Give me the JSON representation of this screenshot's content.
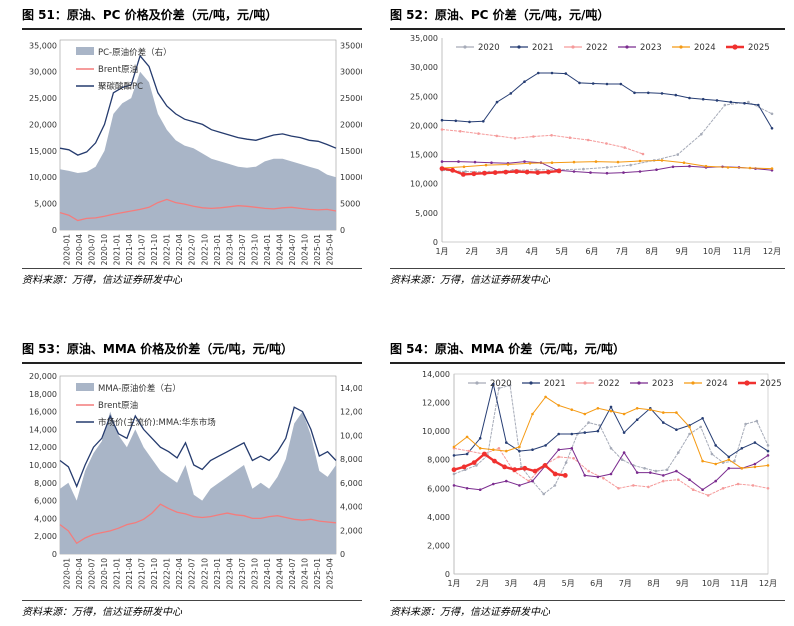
{
  "source_note": "资料来源：万得，信达证券研发中心",
  "colors": {
    "bg_area": "#a9b5c7",
    "brent": "#f47c7c",
    "dark_line": "#253b6e",
    "y2020": "#a6abb8",
    "y2021": "#273e74",
    "y2022": "#f59a9a",
    "y2023": "#7b2c8f",
    "y2024": "#f59a13",
    "y2025": "#f0312f"
  },
  "panels": [
    {
      "id": "p51",
      "title": "图 51：原油、PC 价格及价差（元/吨，元/吨）"
    },
    {
      "id": "p52",
      "title": "图 52：原油、PC 价差（元/吨，元/吨）"
    },
    {
      "id": "p53",
      "title": "图 53：原油、MMA 价格及价差（元/吨，元/吨）"
    },
    {
      "id": "p54",
      "title": "图 54：原油、MMA 价差（元/吨，元/吨）"
    }
  ],
  "chart_data": [
    {
      "type": "line",
      "panel": "p51",
      "x_labels": [
        "2020-01",
        "2020-04",
        "2020-07",
        "2020-10",
        "2021-01",
        "2021-04",
        "2021-07",
        "2021-10",
        "2022-01",
        "2022-04",
        "2022-07",
        "2022-10",
        "2023-01",
        "2023-04",
        "2023-07",
        "2023-10",
        "2024-01",
        "2024-04",
        "2024-07",
        "2024-10",
        "2025-01",
        "2025-04"
      ],
      "y_left": {
        "ticks": [
          0,
          5000,
          10000,
          15000,
          20000,
          25000,
          30000,
          35000
        ],
        "labels": [
          "0",
          "5,000",
          "10,000",
          "15,000",
          "20,000",
          "25,000",
          "30,000",
          "35,000"
        ],
        "max": 36000
      },
      "y_right": {
        "ticks": [
          0,
          5000,
          10000,
          15000,
          20000,
          25000,
          30000,
          35000
        ],
        "labels": [
          "0",
          "5000",
          "10000",
          "15000",
          "20000",
          "25000",
          "30000",
          "35000"
        ],
        "max": 36000
      },
      "legend": [
        "PC-原油价差（右）",
        "Brent原油",
        "聚碳酸酯PC"
      ],
      "series": [
        {
          "name": "PC-原油价差（右）",
          "kind": "area",
          "axis": "right",
          "values": [
            11500,
            11200,
            10800,
            11000,
            12000,
            15000,
            22000,
            24000,
            25000,
            30000,
            28000,
            22000,
            19000,
            17000,
            16000,
            15500,
            14500,
            13500,
            13000,
            12500,
            12000,
            11800,
            12000,
            13000,
            13500,
            13500,
            13000,
            12500,
            12000,
            11500,
            10500,
            10000
          ]
        },
        {
          "name": "Brent原油",
          "kind": "line",
          "axis": "left",
          "values": [
            3300,
            2800,
            1800,
            2200,
            2300,
            2600,
            3000,
            3300,
            3600,
            3900,
            4300,
            5200,
            5800,
            5200,
            4900,
            4500,
            4200,
            4100,
            4200,
            4400,
            4600,
            4500,
            4300,
            4100,
            4000,
            4200,
            4300,
            4100,
            3900,
            3800,
            3900,
            3600
          ]
        },
        {
          "name": "聚碳酸酯PC",
          "kind": "line",
          "axis": "left",
          "values": [
            15500,
            15200,
            14200,
            14800,
            16500,
            20000,
            26000,
            27000,
            27500,
            33000,
            31000,
            26000,
            23500,
            22000,
            21000,
            20500,
            20000,
            19000,
            18500,
            18000,
            17500,
            17200,
            17000,
            17500,
            18000,
            18200,
            17800,
            17500,
            17000,
            16800,
            16200,
            15500
          ]
        }
      ]
    },
    {
      "type": "line",
      "panel": "p52",
      "x_labels": [
        "1月",
        "2月",
        "3月",
        "4月",
        "5月",
        "6月",
        "7月",
        "8月",
        "9月",
        "10月",
        "11月",
        "12月"
      ],
      "y": {
        "ticks": [
          0,
          5000,
          10000,
          15000,
          20000,
          25000,
          30000,
          35000
        ],
        "labels": [
          "0",
          "5,000",
          "10,000",
          "15,000",
          "20,000",
          "25,000",
          "30,000",
          "35,000"
        ],
        "max": 35000
      },
      "legend": [
        "2020",
        "2021",
        "2022",
        "2023",
        "2024",
        "2025"
      ],
      "series": [
        {
          "name": "2020",
          "values": [
            12300,
            12100,
            12000,
            12300,
            12400,
            12400,
            12500,
            12800,
            13200,
            14000,
            15000,
            18500,
            23500,
            24000,
            22000
          ]
        },
        {
          "name": "2021",
          "values": [
            20900,
            20800,
            20600,
            20700,
            24000,
            25500,
            27500,
            29000,
            29000,
            28900,
            27300,
            27200,
            27100,
            27100,
            25600,
            25600,
            25500,
            25200,
            24700,
            24500,
            24300,
            24000,
            23800,
            23500,
            19500
          ]
        },
        {
          "name": "2022",
          "values": [
            19300,
            19000,
            18600,
            18200,
            17800,
            18100,
            18300,
            17900,
            17500,
            16900,
            16200,
            15100
          ]
        },
        {
          "name": "2023",
          "values": [
            13800,
            13800,
            13700,
            13600,
            13500,
            13800,
            13600,
            12300,
            12100,
            11900,
            11800,
            11900,
            12100,
            12400,
            12900,
            13000,
            12800,
            12900,
            12800,
            12600,
            12300
          ]
        },
        {
          "name": "2024",
          "values": [
            12700,
            12900,
            13200,
            13300,
            13500,
            13600,
            13700,
            13800,
            13700,
            13900,
            14000,
            13600,
            13000,
            12800,
            12700,
            12600
          ]
        },
        {
          "name": "2025",
          "values": [
            12600,
            12300,
            11600,
            11700,
            11800,
            11900,
            12000,
            12100,
            12000,
            11900,
            12000,
            12200
          ]
        }
      ]
    },
    {
      "type": "line",
      "panel": "p53",
      "x_labels": [
        "2020-01",
        "2020-04",
        "2020-07",
        "2020-10",
        "2021-01",
        "2021-04",
        "2021-07",
        "2021-10",
        "2022-01",
        "2022-04",
        "2022-07",
        "2022-10",
        "2023-01",
        "2023-04",
        "2023-07",
        "2023-10",
        "2024-01",
        "2024-04",
        "2024-07",
        "2024-10",
        "2025-01",
        "2025-04"
      ],
      "y_left": {
        "ticks": [
          0,
          2000,
          4000,
          6000,
          8000,
          10000,
          12000,
          14000,
          16000,
          18000,
          20000
        ],
        "labels": [
          "0",
          "2,000",
          "4,000",
          "6,000",
          "8,000",
          "10,000",
          "12,000",
          "14,000",
          "16,000",
          "18,000",
          "20,000"
        ],
        "max": 20000
      },
      "y_right": {
        "ticks": [
          0,
          2000,
          4000,
          6000,
          8000,
          10000,
          12000,
          14000
        ],
        "labels": [
          "0",
          "2,000",
          "4,000",
          "6,000",
          "8,000",
          "10,000",
          "12,000",
          "14,000"
        ],
        "max": 15000
      },
      "legend": [
        "MMA-原油价差（右）",
        "Brent原油",
        "市场价(主流价):MMA:华东市场"
      ],
      "series": [
        {
          "name": "MMA-原油价差（右）",
          "kind": "area",
          "axis": "right",
          "values": [
            5500,
            6000,
            4500,
            7000,
            8500,
            9500,
            12000,
            10000,
            9000,
            10500,
            9000,
            8000,
            7000,
            6500,
            6000,
            7500,
            5000,
            4500,
            5500,
            6000,
            6500,
            7000,
            7500,
            5500,
            6000,
            5500,
            6500,
            8000,
            11000,
            12000,
            10000,
            7000,
            6500,
            7500
          ]
        },
        {
          "name": "Brent原油",
          "kind": "line",
          "axis": "left",
          "values": [
            3300,
            2600,
            1200,
            1800,
            2200,
            2400,
            2600,
            2900,
            3300,
            3500,
            3900,
            4600,
            5600,
            5100,
            4700,
            4500,
            4200,
            4100,
            4200,
            4400,
            4600,
            4400,
            4300,
            4000,
            4000,
            4200,
            4300,
            4100,
            3900,
            3800,
            3900,
            3700,
            3600,
            3500
          ]
        },
        {
          "name": "市场价(主流价):MMA:华东市场",
          "kind": "line",
          "axis": "left",
          "values": [
            10500,
            9800,
            7600,
            10000,
            12000,
            13000,
            15500,
            13500,
            13000,
            15500,
            14000,
            13000,
            12000,
            11500,
            10800,
            12500,
            10000,
            9500,
            10500,
            11000,
            11500,
            12000,
            12500,
            10500,
            11000,
            10500,
            11500,
            13000,
            16500,
            16000,
            14000,
            11000,
            11500,
            10500
          ]
        }
      ]
    },
    {
      "type": "line",
      "panel": "p54",
      "x_labels": [
        "1月",
        "2月",
        "3月",
        "4月",
        "5月",
        "6月",
        "7月",
        "8月",
        "9月",
        "10月",
        "11月",
        "12月"
      ],
      "y": {
        "ticks": [
          0,
          2000,
          4000,
          6000,
          8000,
          10000,
          12000,
          14000
        ],
        "labels": [
          "0",
          "2,000",
          "4,000",
          "6,000",
          "8,000",
          "10,000",
          "12,000",
          "14,000"
        ],
        "max": 14000
      },
      "legend": [
        "2020",
        "2021",
        "2022",
        "2023",
        "2024",
        "2025"
      ],
      "series": [
        {
          "name": "2020",
          "values": [
            7000,
            7300,
            7600,
            8300,
            13000,
            13200,
            7500,
            6500,
            5600,
            6200,
            7800,
            9800,
            10600,
            10400,
            8800,
            8000,
            7600,
            7400,
            7200,
            7300,
            8500,
            9800,
            10300,
            8400,
            7800,
            7900,
            10500,
            10700,
            9000
          ]
        },
        {
          "name": "2021",
          "values": [
            8300,
            8400,
            9500,
            13300,
            9200,
            8600,
            8700,
            9000,
            9800,
            9800,
            9900,
            10000,
            11700,
            9900,
            10800,
            11600,
            10600,
            10100,
            10400,
            10900,
            9000,
            8200,
            8800,
            9200,
            8600
          ]
        },
        {
          "name": "2022",
          "values": [
            8800,
            8600,
            8400,
            8800,
            7200,
            6500,
            7600,
            8200,
            8100,
            7200,
            6700,
            6000,
            6200,
            6100,
            6500,
            6600,
            5900,
            5500,
            6000,
            6300,
            6200,
            6000
          ]
        },
        {
          "name": "2023",
          "values": [
            6200,
            6000,
            5900,
            6300,
            6500,
            6200,
            6500,
            7600,
            8700,
            8800,
            6900,
            6800,
            7000,
            8500,
            7100,
            7100,
            6900,
            7200,
            6600,
            5900,
            6500,
            7400,
            7400,
            7700,
            8300
          ]
        },
        {
          "name": "2024",
          "values": [
            8900,
            9600,
            8800,
            8700,
            8600,
            8900,
            11200,
            12400,
            11800,
            11500,
            11200,
            11600,
            11400,
            11200,
            11600,
            11500,
            11300,
            11300,
            10300,
            7900,
            7700,
            8000,
            7400,
            7500,
            7600
          ]
        },
        {
          "name": "2025",
          "values": [
            7300,
            7500,
            7800,
            8400,
            7900,
            7500,
            7300,
            7400,
            7200,
            7600,
            7000,
            6900
          ]
        }
      ]
    }
  ]
}
